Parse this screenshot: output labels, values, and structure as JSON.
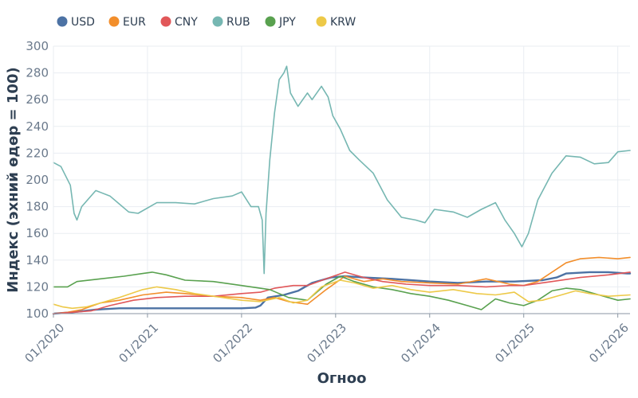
{
  "chart_data": {
    "type": "line",
    "title": "",
    "xlabel": "Огноо",
    "ylabel": "Индекс (эхний өдөр = 100)",
    "x_tick_labels": [
      "01/2020",
      "01/2021",
      "01/2022",
      "01/2023",
      "01/2024",
      "01/2025",
      "01/2026"
    ],
    "x_range": [
      2020.0,
      2026.13
    ],
    "ylim": [
      100,
      300
    ],
    "y_ticks": [
      100,
      120,
      140,
      160,
      180,
      200,
      220,
      240,
      260,
      280,
      300
    ],
    "grid": true,
    "legend_position": "top-left",
    "series": [
      {
        "name": "USD",
        "color": "#4c72a4",
        "width": 2.4,
        "points": [
          [
            2020.0,
            100
          ],
          [
            2020.2,
            101
          ],
          [
            2020.45,
            103
          ],
          [
            2020.7,
            104
          ],
          [
            2021.0,
            104
          ],
          [
            2021.5,
            104
          ],
          [
            2022.0,
            104
          ],
          [
            2022.15,
            104.5
          ],
          [
            2022.2,
            106
          ],
          [
            2022.28,
            112
          ],
          [
            2022.45,
            114
          ],
          [
            2022.6,
            117
          ],
          [
            2022.75,
            123
          ],
          [
            2022.95,
            127
          ],
          [
            2023.1,
            128
          ],
          [
            2023.3,
            127
          ],
          [
            2023.6,
            126
          ],
          [
            2024.0,
            124
          ],
          [
            2024.3,
            123
          ],
          [
            2024.6,
            124
          ],
          [
            2024.9,
            124
          ],
          [
            2025.2,
            125
          ],
          [
            2025.35,
            127
          ],
          [
            2025.45,
            130
          ],
          [
            2025.7,
            131
          ],
          [
            2025.9,
            131
          ],
          [
            2026.1,
            130
          ],
          [
            2026.13,
            130
          ]
        ]
      },
      {
        "name": "EUR",
        "color": "#f28e2b",
        "width": 1.6,
        "points": [
          [
            2020.0,
            100
          ],
          [
            2020.15,
            101
          ],
          [
            2020.3,
            103
          ],
          [
            2020.5,
            108
          ],
          [
            2020.7,
            110
          ],
          [
            2020.95,
            114
          ],
          [
            2021.2,
            116
          ],
          [
            2021.4,
            115
          ],
          [
            2021.7,
            113
          ],
          [
            2022.0,
            112
          ],
          [
            2022.2,
            110
          ],
          [
            2022.35,
            112
          ],
          [
            2022.5,
            109
          ],
          [
            2022.7,
            107
          ],
          [
            2022.9,
            118
          ],
          [
            2023.1,
            128
          ],
          [
            2023.3,
            124
          ],
          [
            2023.5,
            126
          ],
          [
            2023.7,
            124
          ],
          [
            2024.0,
            123
          ],
          [
            2024.3,
            122
          ],
          [
            2024.6,
            126
          ],
          [
            2024.85,
            122
          ],
          [
            2025.0,
            121
          ],
          [
            2025.15,
            124
          ],
          [
            2025.3,
            131
          ],
          [
            2025.45,
            138
          ],
          [
            2025.6,
            141
          ],
          [
            2025.8,
            142
          ],
          [
            2026.0,
            141
          ],
          [
            2026.13,
            142
          ]
        ]
      },
      {
        "name": "CNY",
        "color": "#e15759",
        "width": 1.6,
        "points": [
          [
            2020.0,
            100
          ],
          [
            2020.2,
            101
          ],
          [
            2020.4,
            102
          ],
          [
            2020.6,
            106
          ],
          [
            2020.85,
            110
          ],
          [
            2021.1,
            112
          ],
          [
            2021.4,
            113
          ],
          [
            2021.7,
            113
          ],
          [
            2022.0,
            115
          ],
          [
            2022.2,
            116
          ],
          [
            2022.35,
            119
          ],
          [
            2022.55,
            121
          ],
          [
            2022.7,
            121
          ],
          [
            2022.9,
            126
          ],
          [
            2023.1,
            131
          ],
          [
            2023.3,
            127
          ],
          [
            2023.5,
            124
          ],
          [
            2023.75,
            122
          ],
          [
            2024.0,
            121
          ],
          [
            2024.3,
            121
          ],
          [
            2024.6,
            120
          ],
          [
            2024.85,
            121
          ],
          [
            2025.0,
            121
          ],
          [
            2025.3,
            124
          ],
          [
            2025.6,
            127
          ],
          [
            2025.9,
            129
          ],
          [
            2026.13,
            131
          ]
        ]
      },
      {
        "name": "RUB",
        "color": "#76b7b2",
        "width": 1.6,
        "points": [
          [
            2020.0,
            213
          ],
          [
            2020.08,
            210
          ],
          [
            2020.18,
            196
          ],
          [
            2020.22,
            175
          ],
          [
            2020.25,
            170
          ],
          [
            2020.3,
            180
          ],
          [
            2020.45,
            192
          ],
          [
            2020.6,
            188
          ],
          [
            2020.8,
            176
          ],
          [
            2020.9,
            175
          ],
          [
            2021.1,
            183
          ],
          [
            2021.3,
            183
          ],
          [
            2021.5,
            182
          ],
          [
            2021.7,
            186
          ],
          [
            2021.9,
            188
          ],
          [
            2022.0,
            191
          ],
          [
            2022.1,
            180
          ],
          [
            2022.18,
            180
          ],
          [
            2022.22,
            170
          ],
          [
            2022.24,
            130
          ],
          [
            2022.26,
            175
          ],
          [
            2022.3,
            215
          ],
          [
            2022.35,
            250
          ],
          [
            2022.4,
            275
          ],
          [
            2022.45,
            280
          ],
          [
            2022.48,
            285
          ],
          [
            2022.52,
            265
          ],
          [
            2022.6,
            255
          ],
          [
            2022.7,
            265
          ],
          [
            2022.75,
            260
          ],
          [
            2022.85,
            270
          ],
          [
            2022.92,
            262
          ],
          [
            2022.97,
            248
          ],
          [
            2023.05,
            238
          ],
          [
            2023.15,
            222
          ],
          [
            2023.25,
            215
          ],
          [
            2023.4,
            205
          ],
          [
            2023.55,
            185
          ],
          [
            2023.7,
            172
          ],
          [
            2023.85,
            170
          ],
          [
            2023.95,
            168
          ],
          [
            2024.05,
            178
          ],
          [
            2024.25,
            176
          ],
          [
            2024.4,
            172
          ],
          [
            2024.55,
            178
          ],
          [
            2024.7,
            183
          ],
          [
            2024.8,
            170
          ],
          [
            2024.9,
            160
          ],
          [
            2024.98,
            150
          ],
          [
            2025.05,
            160
          ],
          [
            2025.15,
            185
          ],
          [
            2025.3,
            205
          ],
          [
            2025.45,
            218
          ],
          [
            2025.6,
            217
          ],
          [
            2025.75,
            212
          ],
          [
            2025.9,
            213
          ],
          [
            2026.0,
            221
          ],
          [
            2026.13,
            222
          ]
        ]
      },
      {
        "name": "JPY",
        "color": "#59a14f",
        "width": 1.6,
        "points": [
          [
            2020.0,
            120
          ],
          [
            2020.15,
            120
          ],
          [
            2020.25,
            124
          ],
          [
            2020.5,
            126
          ],
          [
            2020.75,
            128
          ],
          [
            2020.95,
            130
          ],
          [
            2021.05,
            131
          ],
          [
            2021.2,
            129
          ],
          [
            2021.4,
            125
          ],
          [
            2021.7,
            124
          ],
          [
            2022.0,
            121
          ],
          [
            2022.3,
            118
          ],
          [
            2022.5,
            112
          ],
          [
            2022.7,
            110
          ],
          [
            2022.9,
            122
          ],
          [
            2023.05,
            128
          ],
          [
            2023.2,
            124
          ],
          [
            2023.4,
            120
          ],
          [
            2023.6,
            118
          ],
          [
            2023.8,
            115
          ],
          [
            2024.0,
            113
          ],
          [
            2024.2,
            110
          ],
          [
            2024.4,
            106
          ],
          [
            2024.55,
            103
          ],
          [
            2024.7,
            111
          ],
          [
            2024.85,
            108
          ],
          [
            2025.0,
            106
          ],
          [
            2025.15,
            110
          ],
          [
            2025.3,
            117
          ],
          [
            2025.45,
            119
          ],
          [
            2025.6,
            118
          ],
          [
            2025.8,
            114
          ],
          [
            2026.0,
            110
          ],
          [
            2026.13,
            111
          ]
        ]
      },
      {
        "name": "KRW",
        "color": "#edc948",
        "width": 1.6,
        "points": [
          [
            2020.0,
            107
          ],
          [
            2020.1,
            105
          ],
          [
            2020.2,
            104
          ],
          [
            2020.35,
            105
          ],
          [
            2020.5,
            108
          ],
          [
            2020.7,
            112
          ],
          [
            2020.95,
            118
          ],
          [
            2021.1,
            120
          ],
          [
            2021.3,
            118
          ],
          [
            2021.5,
            115
          ],
          [
            2021.8,
            112
          ],
          [
            2022.0,
            110
          ],
          [
            2022.2,
            109
          ],
          [
            2022.4,
            112
          ],
          [
            2022.55,
            108
          ],
          [
            2022.7,
            110
          ],
          [
            2022.85,
            120
          ],
          [
            2023.05,
            125
          ],
          [
            2023.2,
            123
          ],
          [
            2023.4,
            119
          ],
          [
            2023.6,
            121
          ],
          [
            2023.8,
            118
          ],
          [
            2024.0,
            116
          ],
          [
            2024.25,
            118
          ],
          [
            2024.5,
            115
          ],
          [
            2024.7,
            114
          ],
          [
            2024.9,
            116
          ],
          [
            2025.05,
            109
          ],
          [
            2025.2,
            110
          ],
          [
            2025.4,
            114
          ],
          [
            2025.55,
            117
          ],
          [
            2025.7,
            115
          ],
          [
            2025.9,
            113
          ],
          [
            2026.13,
            114
          ]
        ]
      }
    ]
  }
}
